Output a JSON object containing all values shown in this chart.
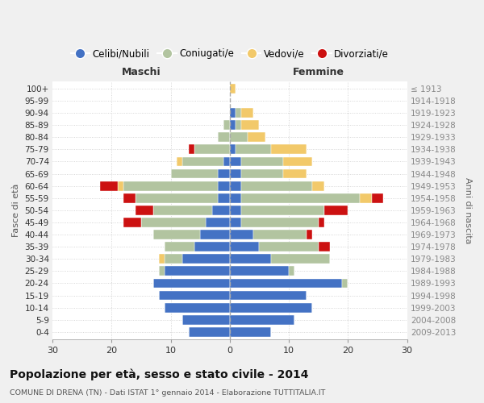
{
  "age_groups": [
    "0-4",
    "5-9",
    "10-14",
    "15-19",
    "20-24",
    "25-29",
    "30-34",
    "35-39",
    "40-44",
    "45-49",
    "50-54",
    "55-59",
    "60-64",
    "65-69",
    "70-74",
    "75-79",
    "80-84",
    "85-89",
    "90-94",
    "95-99",
    "100+"
  ],
  "birth_years": [
    "2009-2013",
    "2004-2008",
    "1999-2003",
    "1994-1998",
    "1989-1993",
    "1984-1988",
    "1979-1983",
    "1974-1978",
    "1969-1973",
    "1964-1968",
    "1959-1963",
    "1954-1958",
    "1949-1953",
    "1944-1948",
    "1939-1943",
    "1934-1938",
    "1929-1933",
    "1924-1928",
    "1919-1923",
    "1914-1918",
    "≤ 1913"
  ],
  "colors": {
    "celibe": "#4472C4",
    "coniugato": "#B2C4A0",
    "vedovo": "#F2C96A",
    "divorziato": "#CC1111"
  },
  "maschi": {
    "celibe": [
      7,
      8,
      11,
      12,
      13,
      11,
      8,
      6,
      5,
      4,
      3,
      2,
      2,
      2,
      1,
      0,
      0,
      0,
      0,
      0,
      0
    ],
    "coniugato": [
      0,
      0,
      0,
      0,
      0,
      1,
      3,
      5,
      8,
      11,
      10,
      14,
      16,
      8,
      7,
      6,
      2,
      1,
      0,
      0,
      0
    ],
    "vedovo": [
      0,
      0,
      0,
      0,
      0,
      0,
      1,
      0,
      0,
      0,
      0,
      0,
      1,
      0,
      1,
      0,
      0,
      0,
      0,
      0,
      0
    ],
    "divorziato": [
      0,
      0,
      0,
      0,
      0,
      0,
      0,
      0,
      0,
      3,
      3,
      2,
      3,
      0,
      0,
      1,
      0,
      0,
      0,
      0,
      0
    ]
  },
  "femmine": {
    "nubile": [
      7,
      11,
      14,
      13,
      19,
      10,
      7,
      5,
      4,
      2,
      2,
      2,
      2,
      2,
      2,
      1,
      0,
      1,
      1,
      0,
      0
    ],
    "coniugata": [
      0,
      0,
      0,
      0,
      1,
      1,
      10,
      10,
      9,
      13,
      14,
      20,
      12,
      7,
      7,
      6,
      3,
      1,
      1,
      0,
      0
    ],
    "vedova": [
      0,
      0,
      0,
      0,
      0,
      0,
      0,
      0,
      0,
      0,
      0,
      2,
      2,
      4,
      5,
      6,
      3,
      3,
      2,
      0,
      1
    ],
    "divorziata": [
      0,
      0,
      0,
      0,
      0,
      0,
      0,
      2,
      1,
      1,
      4,
      2,
      0,
      0,
      0,
      0,
      0,
      0,
      0,
      0,
      0
    ]
  },
  "xlim": 30,
  "title": "Popolazione per età, sesso e stato civile - 2014",
  "subtitle": "COMUNE DI DRENA (TN) - Dati ISTAT 1° gennaio 2014 - Elaborazione TUTTITALIA.IT",
  "ylabel_left": "Fasce di età",
  "ylabel_right": "Anni di nascita",
  "xlabel_left": "Maschi",
  "xlabel_right": "Femmine",
  "legend_labels": [
    "Celibi/Nubili",
    "Coniugati/e",
    "Vedovi/e",
    "Divorziati/e"
  ],
  "bg_color": "#f0f0f0",
  "plot_bg": "#ffffff"
}
